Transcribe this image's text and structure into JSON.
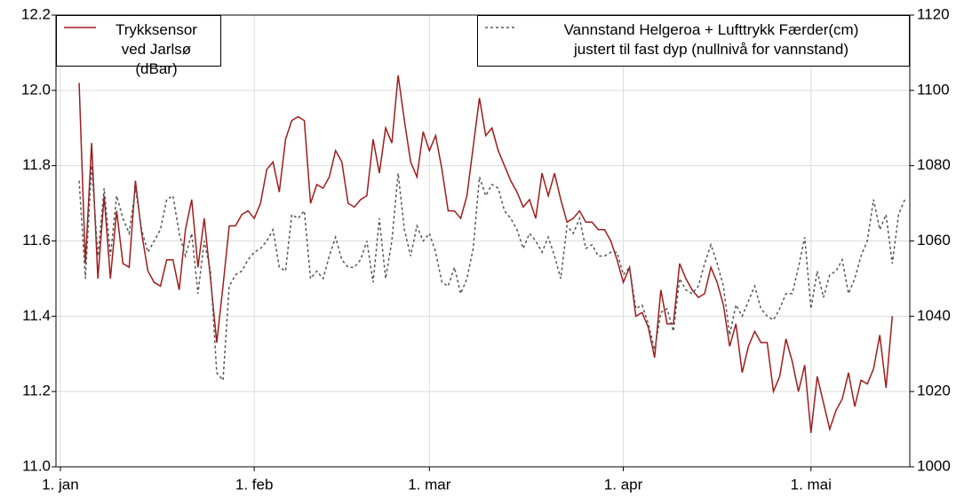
{
  "chart_data": {
    "type": "line",
    "x": [
      3,
      4,
      5,
      6,
      7,
      8,
      9,
      10,
      11,
      12,
      13,
      14,
      15,
      16,
      17,
      18,
      19,
      20,
      21,
      22,
      23,
      24,
      25,
      26,
      27,
      28,
      29,
      30,
      31,
      32,
      33,
      34,
      35,
      36,
      37,
      38,
      39,
      40,
      41,
      42,
      43,
      44,
      45,
      46,
      47,
      48,
      49,
      50,
      51,
      52,
      53,
      54,
      55,
      56,
      57,
      58,
      59,
      60,
      61,
      62,
      63,
      64,
      65,
      66,
      67,
      68,
      69,
      70,
      71,
      72,
      73,
      74,
      75,
      76,
      77,
      78,
      79,
      80,
      81,
      82,
      83,
      84,
      85,
      86,
      87,
      88,
      89,
      90,
      91,
      92,
      93,
      94,
      95,
      96,
      97,
      98,
      99,
      100,
      101,
      102,
      103,
      104,
      105,
      106,
      107,
      108,
      109,
      110,
      111,
      112,
      113,
      114,
      115,
      116,
      117,
      118,
      119,
      120,
      121,
      122,
      123,
      124,
      125,
      126,
      127,
      128,
      129,
      130,
      131,
      132,
      133,
      134,
      135
    ],
    "series": [
      {
        "name": "Trykksensor\nved Jarlsø (dBar)",
        "color": "#a01c1c",
        "dash": false,
        "legend": "upper left",
        "values": [
          12.02,
          11.54,
          11.86,
          11.5,
          11.72,
          11.5,
          11.68,
          11.54,
          11.53,
          11.76,
          11.62,
          11.52,
          11.49,
          11.48,
          11.55,
          11.55,
          11.47,
          11.63,
          11.71,
          11.53,
          11.66,
          11.5,
          11.33,
          11.48,
          11.64,
          11.64,
          11.67,
          11.68,
          11.66,
          11.7,
          11.79,
          11.81,
          11.73,
          11.87,
          11.92,
          11.93,
          11.92,
          11.7,
          11.75,
          11.74,
          11.77,
          11.84,
          11.81,
          11.7,
          11.69,
          11.71,
          11.72,
          11.87,
          11.78,
          11.9,
          11.86,
          12.04,
          11.92,
          11.81,
          11.77,
          11.89,
          11.84,
          11.88,
          11.79,
          11.68,
          11.68,
          11.66,
          11.72,
          11.85,
          11.98,
          11.88,
          11.9,
          11.84,
          11.8,
          11.76,
          11.73,
          11.69,
          11.71,
          11.66,
          11.78,
          11.72,
          11.78,
          11.71,
          11.65,
          11.66,
          11.68,
          11.65,
          11.65,
          11.63,
          11.63,
          11.6,
          11.55,
          11.49,
          11.53,
          11.4,
          11.41,
          11.37,
          11.29,
          11.47,
          11.38,
          11.38,
          11.54,
          11.5,
          11.47,
          11.45,
          11.46,
          11.53,
          11.49,
          11.43,
          11.32,
          11.38,
          11.25,
          11.32,
          11.36,
          11.33,
          11.33,
          11.2,
          11.24,
          11.34,
          11.28,
          11.2,
          11.27,
          11.09,
          11.24,
          11.17,
          11.1,
          11.15,
          11.18,
          11.25,
          11.16,
          11.23,
          11.22,
          11.26,
          11.35,
          11.21,
          11.4,
          null,
          null
        ]
      },
      {
        "name": "Vannstand Helgeroa + Lufttrykk Færder(cm)\njustert til fast dyp (nullnivå for vannstand)",
        "color": "#555555",
        "dash": true,
        "axis": "y2",
        "legend": "upper right",
        "values": [
          1076,
          1050,
          1080,
          1056,
          1074,
          1056,
          1072,
          1066,
          1062,
          1074,
          1063,
          1057,
          1060,
          1063,
          1071,
          1072,
          1062,
          1056,
          1062,
          1046,
          1060,
          1052,
          1025,
          1023,
          1048,
          1051,
          1052,
          1055,
          1057,
          1058,
          1060,
          1063,
          1053,
          1052,
          1067,
          1066,
          1068,
          1050,
          1052,
          1050,
          1056,
          1061,
          1055,
          1053,
          1053,
          1055,
          1060,
          1049,
          1066,
          1050,
          1060,
          1078,
          1063,
          1056,
          1064,
          1060,
          1062,
          1057,
          1049,
          1048,
          1053,
          1046,
          1050,
          1058,
          1077,
          1072,
          1075,
          1074,
          1068,
          1066,
          1063,
          1058,
          1062,
          1060,
          1057,
          1061,
          1056,
          1050,
          1064,
          1062,
          1066,
          1058,
          1059,
          1056,
          1056,
          1057,
          1057,
          1051,
          1053,
          1042,
          1043,
          1038,
          1031,
          1041,
          1042,
          1036,
          1050,
          1047,
          1046,
          1048,
          1054,
          1059,
          1054,
          1048,
          1035,
          1043,
          1040,
          1044,
          1048,
          1042,
          1040,
          1039,
          1042,
          1046,
          1046,
          1053,
          1061,
          1042,
          1052,
          1045,
          1051,
          1052,
          1055,
          1046,
          1050,
          1056,
          1060,
          1071,
          1063,
          1067,
          1054,
          1067,
          1071
        ]
      }
    ],
    "xlim": [
      -0.7,
      135.8
    ],
    "xticks": [
      {
        "value": 0,
        "label": "1. jan"
      },
      {
        "value": 31,
        "label": "1. feb"
      },
      {
        "value": 59,
        "label": "1. mar"
      },
      {
        "value": 90,
        "label": "1. apr"
      },
      {
        "value": 120,
        "label": "1. mai"
      }
    ],
    "ylim": [
      11.0,
      12.2
    ],
    "yticks": [
      {
        "value": 11.0,
        "label": "11.0"
      },
      11.2,
      11.4,
      11.6,
      11.8,
      {
        "value": 12.0,
        "label": "12.0"
      },
      12.2
    ],
    "y2lim": [
      1000,
      1120
    ],
    "y2ticks": [
      1000,
      1020,
      1040,
      1060,
      1080,
      1100,
      1120
    ],
    "grid": true
  }
}
